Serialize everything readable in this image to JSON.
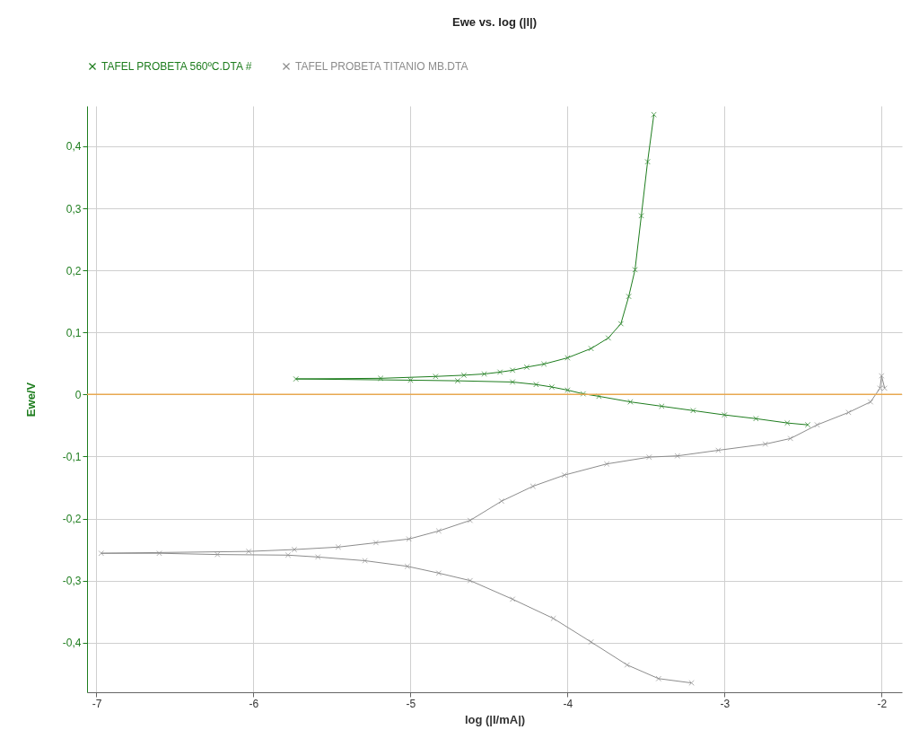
{
  "chart_data": {
    "type": "line",
    "title": "Ewe vs. log (|I|)",
    "xlabel": "log (|I/mA|)",
    "ylabel": "Ewe/V",
    "xlim": [
      -7.06,
      -1.87
    ],
    "ylim": [
      -0.48,
      0.465
    ],
    "xticks": [
      -7,
      -6,
      -5,
      -4,
      -3,
      -2
    ],
    "yticks": [
      {
        "value": -0.4,
        "label": "-0,4"
      },
      {
        "value": -0.3,
        "label": "-0,3"
      },
      {
        "value": -0.2,
        "label": "-0,2"
      },
      {
        "value": -0.1,
        "label": "-0,1"
      },
      0,
      {
        "value": 0.1,
        "label": "0,1"
      },
      {
        "value": 0.2,
        "label": "0,2"
      },
      {
        "value": 0.3,
        "label": "0,3"
      },
      {
        "value": 0.4,
        "label": "0,4"
      }
    ],
    "grid": true,
    "legend": "top",
    "marker": "cross",
    "line_style": "solid",
    "ref_lines": [
      {
        "axis": "y",
        "value": 0,
        "color": "#e8a850"
      }
    ],
    "series": [
      {
        "name": "TAFEL PROBETA 560ºC.DTA #",
        "color": "#1e7d1e",
        "x": [
          -2.47,
          -2.6,
          -2.8,
          -3.0,
          -3.2,
          -3.4,
          -3.6,
          -3.8,
          -3.9,
          -4.0,
          -4.1,
          -4.2,
          -4.35,
          -4.7,
          -5.0,
          -5.73,
          -5.19,
          -4.84,
          -4.66,
          -4.53,
          -4.43,
          -4.35,
          -4.26,
          -4.15,
          -4.0,
          -3.85,
          -3.74,
          -3.66,
          -3.61,
          -3.57,
          -3.53,
          -3.49,
          -3.45
        ],
        "values": [
          -0.049,
          -0.046,
          -0.039,
          -0.033,
          -0.026,
          -0.019,
          -0.012,
          -0.003,
          0.001,
          0.007,
          0.012,
          0.016,
          0.02,
          0.022,
          0.023,
          0.025,
          0.026,
          0.029,
          0.031,
          0.033,
          0.036,
          0.039,
          0.044,
          0.049,
          0.059,
          0.074,
          0.091,
          0.114,
          0.158,
          0.201,
          0.288,
          0.375,
          0.451
        ]
      },
      {
        "name": "TAFEL PROBETA TITANIO MB.DTA",
        "color": "#8c8c8c",
        "x": [
          -3.21,
          -3.42,
          -3.62,
          -3.85,
          -4.09,
          -4.35,
          -4.62,
          -4.82,
          -5.02,
          -5.29,
          -5.59,
          -5.78,
          -6.23,
          -6.6,
          -6.97,
          -6.03,
          -5.74,
          -5.46,
          -5.22,
          -5.01,
          -4.82,
          -4.62,
          -4.42,
          -4.22,
          -4.02,
          -3.75,
          -3.48,
          -3.3,
          -3.04,
          -2.74,
          -2.58,
          -2.41,
          -2.21,
          -2.07,
          -2.01,
          -2.0,
          -1.98
        ],
        "values": [
          -0.465,
          -0.458,
          -0.436,
          -0.399,
          -0.361,
          -0.33,
          -0.3,
          -0.288,
          -0.277,
          -0.268,
          -0.262,
          -0.259,
          -0.258,
          -0.256,
          -0.256,
          -0.253,
          -0.25,
          -0.246,
          -0.239,
          -0.233,
          -0.22,
          -0.203,
          -0.172,
          -0.148,
          -0.13,
          -0.112,
          -0.101,
          -0.099,
          -0.09,
          -0.08,
          -0.071,
          -0.049,
          -0.029,
          -0.012,
          0.01,
          0.03,
          0.01
        ]
      }
    ]
  }
}
